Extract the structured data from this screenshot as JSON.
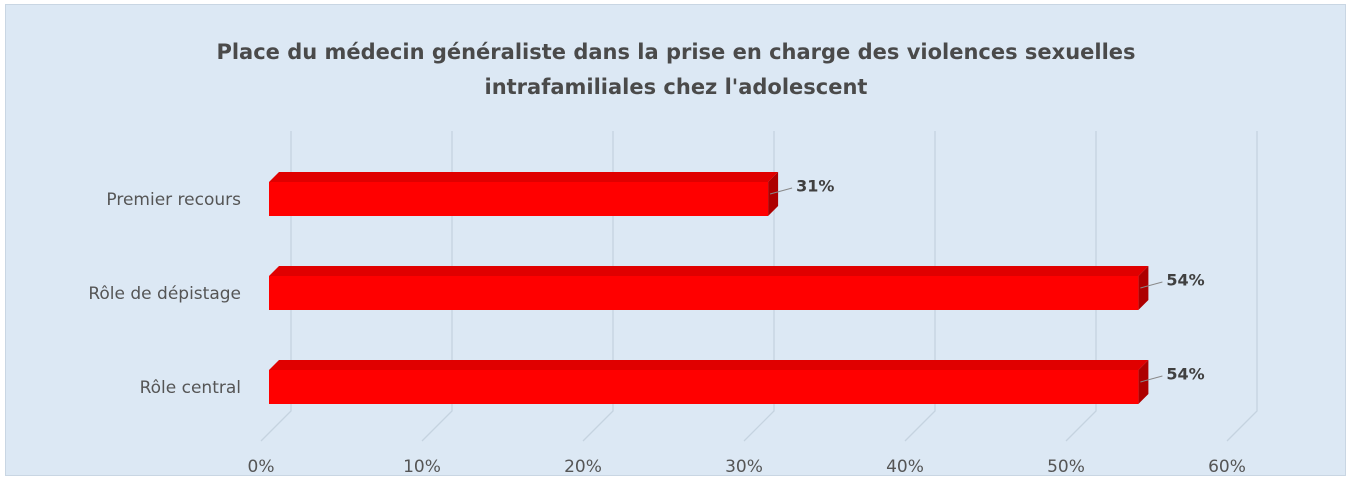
{
  "chart_data": {
    "type": "bar3d_horizontal",
    "title": "Place du médecin généraliste dans la prise en charge des violences sexuelles intrafamiliales chez l'adolescent",
    "categories": [
      "Premier recours",
      "Rôle de dépistage",
      "Rôle central"
    ],
    "values": [
      31,
      54,
      54
    ],
    "value_labels": [
      "31%",
      "54%",
      "54%"
    ],
    "color": "#ff0000",
    "xlim": [
      0,
      60
    ],
    "xticks": [
      {
        "value": 0,
        "label": "0%"
      },
      {
        "value": 10,
        "label": "10%"
      },
      {
        "value": 20,
        "label": "20%"
      },
      {
        "value": 30,
        "label": "30%"
      },
      {
        "value": 40,
        "label": "40%"
      },
      {
        "value": 50,
        "label": "50%"
      },
      {
        "value": 60,
        "label": "60%"
      }
    ],
    "grid": true
  }
}
